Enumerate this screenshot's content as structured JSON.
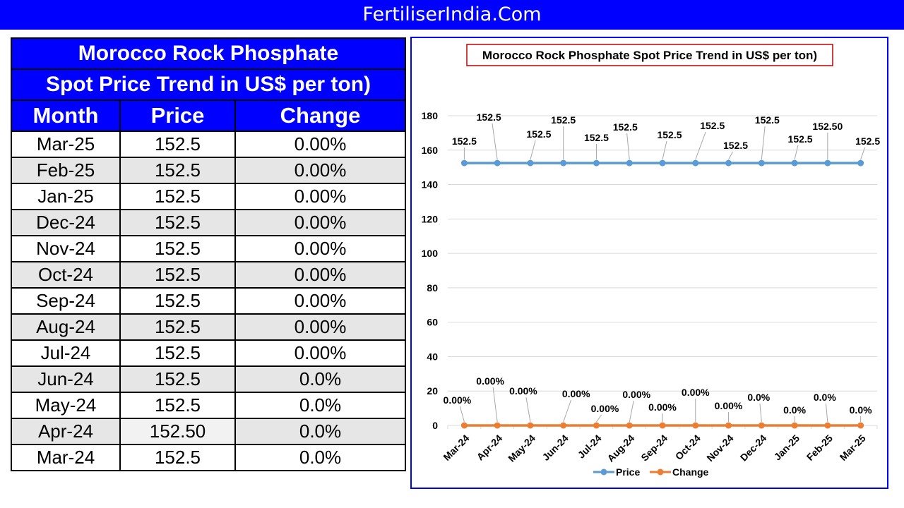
{
  "banner": {
    "title": "FertiliserIndia.Com"
  },
  "table": {
    "title_line1": "Morocco Rock Phosphate",
    "title_line2": "Spot Price Trend in US$ per ton)",
    "headers": [
      "Month",
      "Price",
      "Change"
    ],
    "rows": [
      {
        "month": "Mar-25",
        "price": "152.5",
        "change": "0.00%"
      },
      {
        "month": "Feb-25",
        "price": "152.5",
        "change": "0.00%"
      },
      {
        "month": "Jan-25",
        "price": "152.5",
        "change": "0.00%"
      },
      {
        "month": "Dec-24",
        "price": "152.5",
        "change": "0.00%"
      },
      {
        "month": "Nov-24",
        "price": "152.5",
        "change": "0.00%"
      },
      {
        "month": "Oct-24",
        "price": "152.5",
        "change": "0.00%"
      },
      {
        "month": "Sep-24",
        "price": "152.5",
        "change": "0.00%"
      },
      {
        "month": "Aug-24",
        "price": "152.5",
        "change": "0.00%"
      },
      {
        "month": "Jul-24",
        "price": "152.5",
        "change": "0.00%"
      },
      {
        "month": "Jun-24",
        "price": "152.5",
        "change": "0.0%"
      },
      {
        "month": "May-24",
        "price": "152.5",
        "change": "0.0%"
      },
      {
        "month": "Apr-24",
        "price": "152.50",
        "change": "0.0%"
      },
      {
        "month": "Mar-24",
        "price": "152.5",
        "change": "0.0%"
      }
    ]
  },
  "colors": {
    "banner_bg": "#0000ff",
    "header_bg": "#0000ff",
    "alt_row_bg": "#e6e6e6",
    "price_series": "#5b9bd5",
    "change_series": "#ed7d31",
    "chart_title_border": "#c00000",
    "chart_border": "#0000ff"
  },
  "chart_data": {
    "type": "line",
    "title": "Morocco Rock Phosphate Spot Price Trend in US$ per ton)",
    "xlabel": "",
    "ylabel": "",
    "ylim": [
      0,
      180
    ],
    "yticks": [
      0,
      20,
      40,
      60,
      80,
      100,
      120,
      140,
      160,
      180
    ],
    "grid": true,
    "legend_position": "bottom",
    "categories": [
      "Mar-24",
      "Apr-24",
      "May-24",
      "Jun-24",
      "Jul-24",
      "Aug-24",
      "Sep-24",
      "Oct-24",
      "Nov-24",
      "Dec-24",
      "Jan-25",
      "Feb-25",
      "Mar-25"
    ],
    "series": [
      {
        "name": "Price",
        "values": [
          152.5,
          152.5,
          152.5,
          152.5,
          152.5,
          152.5,
          152.5,
          152.5,
          152.5,
          152.5,
          152.5,
          152.5,
          152.5
        ],
        "labels": [
          "152.5",
          "152.5",
          "152.5",
          "152.5",
          "152.5",
          "152.5",
          "152.5",
          "152.5",
          "152.5",
          "152.5",
          "152.5",
          "152.50",
          "152.5"
        ]
      },
      {
        "name": "Change",
        "values": [
          0,
          0,
          0,
          0,
          0,
          0,
          0,
          0,
          0,
          0,
          0,
          0,
          0
        ],
        "labels": [
          "0.00%",
          "0.00%",
          "0.00%",
          "0.00%",
          "0.00%",
          "0.00%",
          "0.00%",
          "0.00%",
          "0.00%",
          "0.0%",
          "0.0%",
          "0.0%",
          "0.0%"
        ]
      }
    ]
  }
}
